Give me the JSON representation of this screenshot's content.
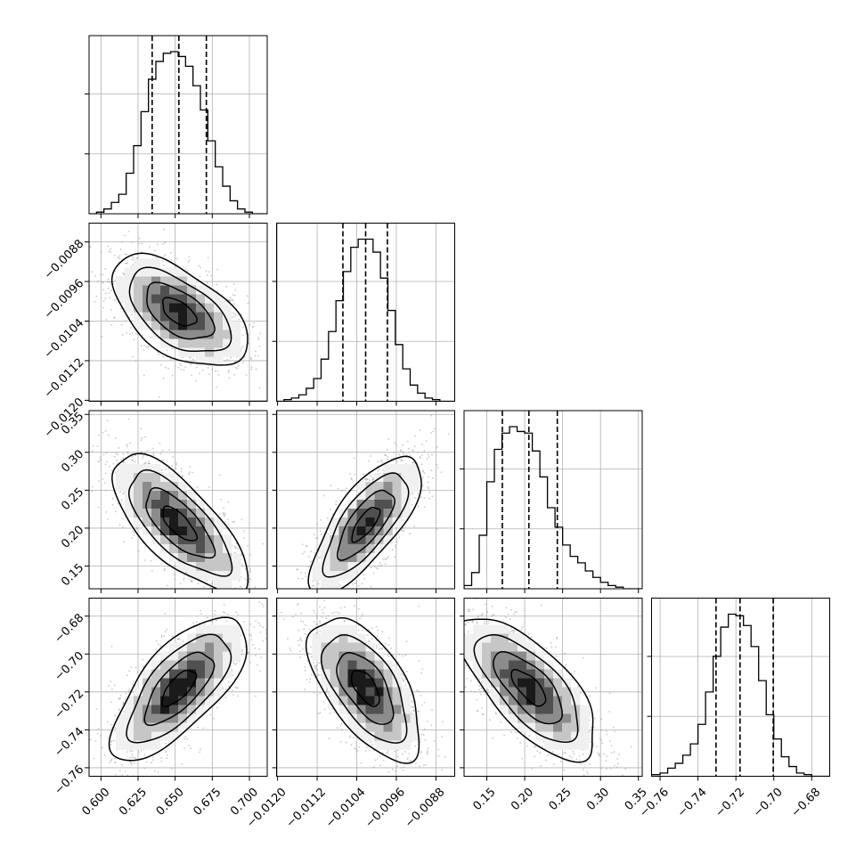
{
  "chart_data": {
    "type": "corner",
    "parameters": [
      {
        "id": "p0",
        "range": [
          0.592,
          0.712
        ],
        "ticks": [
          0.6,
          0.625,
          0.65,
          0.675,
          0.7
        ],
        "tick_labels": [
          "0.600",
          "0.625",
          "0.650",
          "0.675",
          "0.700"
        ],
        "quantiles": [
          0.6345,
          0.6525,
          0.671
        ],
        "hist_bins": [
          0.592,
          0.597,
          0.602,
          0.607,
          0.612,
          0.617,
          0.622,
          0.627,
          0.632,
          0.637,
          0.642,
          0.647,
          0.652,
          0.657,
          0.662,
          0.667,
          0.672,
          0.677,
          0.682,
          0.687,
          0.692,
          0.697,
          0.702,
          0.707,
          0.712
        ],
        "hist_values": [
          0.0,
          0.01,
          0.03,
          0.07,
          0.12,
          0.25,
          0.42,
          0.63,
          0.83,
          0.94,
          0.99,
          1.0,
          0.97,
          0.91,
          0.79,
          0.64,
          0.45,
          0.29,
          0.17,
          0.08,
          0.03,
          0.01,
          0.0,
          0.0
        ],
        "show_tick_labels_x": true,
        "show_tick_labels_y": false
      },
      {
        "id": "p1",
        "range": [
          -0.01202,
          -0.00842
        ],
        "ticks": [
          -0.012,
          -0.0112,
          -0.0104,
          -0.0096,
          -0.0088
        ],
        "tick_labels": [
          "−0.0120",
          "−0.0112",
          "−0.0104",
          "−0.0096",
          "−0.0088"
        ],
        "quantiles": [
          -0.01068,
          -0.01022,
          -0.00978
        ],
        "hist_bins": [
          -0.01202,
          -0.01187,
          -0.01172,
          -0.01157,
          -0.01142,
          -0.01127,
          -0.01112,
          -0.01097,
          -0.01082,
          -0.01067,
          -0.01052,
          -0.01037,
          -0.01022,
          -0.01007,
          -0.00992,
          -0.00977,
          -0.00962,
          -0.00947,
          -0.00932,
          -0.00917,
          -0.00902,
          -0.00887,
          -0.00872,
          -0.00857,
          -0.00842
        ],
        "hist_values": [
          0.0,
          0.01,
          0.02,
          0.04,
          0.08,
          0.14,
          0.26,
          0.43,
          0.62,
          0.8,
          0.95,
          1.0,
          1.0,
          0.92,
          0.76,
          0.56,
          0.35,
          0.2,
          0.1,
          0.05,
          0.02,
          0.01,
          0.0,
          0.0
        ],
        "show_tick_labels_x": true,
        "show_tick_labels_y": true
      },
      {
        "id": "p2",
        "range": [
          0.12,
          0.355
        ],
        "ticks": [
          0.15,
          0.2,
          0.25,
          0.3,
          0.35
        ],
        "tick_labels": [
          "0.15",
          "0.20",
          "0.25",
          "0.30",
          "0.35"
        ],
        "quantiles": [
          0.1705,
          0.2055,
          0.243
        ],
        "hist_bins": [
          0.12,
          0.13,
          0.14,
          0.15,
          0.16,
          0.17,
          0.18,
          0.19,
          0.2,
          0.21,
          0.22,
          0.23,
          0.24,
          0.25,
          0.26,
          0.27,
          0.28,
          0.29,
          0.3,
          0.31,
          0.32,
          0.33,
          0.34,
          0.355
        ],
        "hist_values": [
          0.02,
          0.1,
          0.33,
          0.66,
          0.86,
          0.96,
          1.0,
          0.97,
          0.96,
          0.85,
          0.69,
          0.5,
          0.38,
          0.27,
          0.2,
          0.16,
          0.11,
          0.07,
          0.04,
          0.02,
          0.01,
          0.0,
          0.0
        ],
        "show_tick_labels_x": true,
        "show_tick_labels_y": true
      },
      {
        "id": "p3",
        "range": [
          -0.7645,
          -0.6705
        ],
        "ticks": [
          -0.76,
          -0.74,
          -0.72,
          -0.7,
          -0.68
        ],
        "tick_labels": [
          "−0.76",
          "−0.74",
          "−0.72",
          "−0.70",
          "−0.68"
        ],
        "quantiles": [
          -0.7305,
          -0.7178,
          -0.7003
        ],
        "hist_bins": [
          -0.7645,
          -0.76,
          -0.756,
          -0.752,
          -0.748,
          -0.744,
          -0.74,
          -0.736,
          -0.732,
          -0.728,
          -0.724,
          -0.72,
          -0.716,
          -0.712,
          -0.708,
          -0.704,
          -0.7,
          -0.696,
          -0.692,
          -0.688,
          -0.684,
          -0.68,
          -0.676,
          -0.6705
        ],
        "hist_values": [
          0.01,
          0.02,
          0.05,
          0.08,
          0.13,
          0.2,
          0.32,
          0.52,
          0.74,
          0.92,
          1.0,
          0.99,
          0.93,
          0.8,
          0.59,
          0.38,
          0.23,
          0.12,
          0.06,
          0.02,
          0.01,
          0.0,
          0.0
        ],
        "show_tick_labels_x": true,
        "show_tick_labels_y": true
      }
    ],
    "correlations": {
      "1,0": -0.55,
      "2,0": -0.72,
      "2,1": 0.74,
      "3,0": 0.7,
      "3,1": -0.6,
      "3,2": -0.7
    },
    "contour_levels_sigma": [
      0.5,
      1.0,
      1.5,
      2.0
    ],
    "colors": {
      "line": "#000000",
      "grid": "#b0b0b0",
      "points": "#9a9a9a",
      "density": [
        "#f0f0f0",
        "#c6c6c6",
        "#8c8c8c",
        "#505050",
        "#1a1a1a"
      ]
    },
    "grid": true,
    "legend": "none"
  }
}
